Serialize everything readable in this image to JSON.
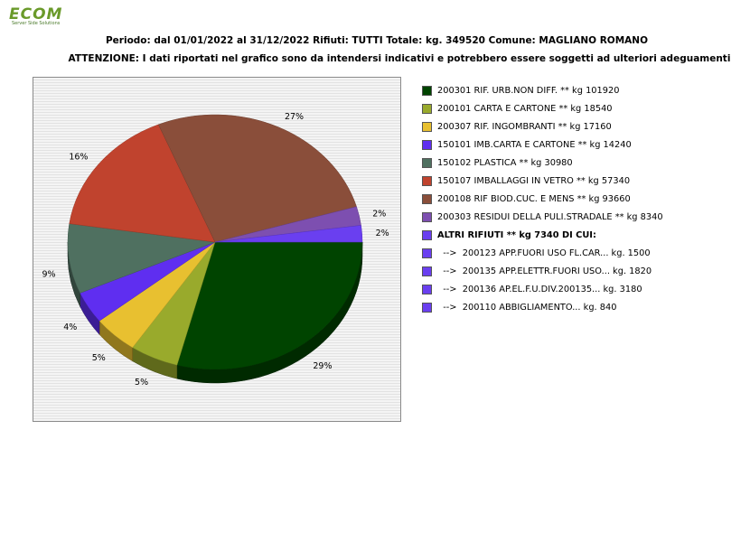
{
  "logo": {
    "text": "ECOM",
    "tagline": "Server Side Solutions"
  },
  "header": {
    "line1": "Periodo: dal 01/01/2022 al 31/12/2022 Rifiuti: TUTTI   Totale: kg. 349520    Comune: MAGLIANO ROMANO",
    "line2": "ATTENZIONE: I dati riportati nel grafico sono da intendersi indicativi e potrebbero essere soggetti ad ulteriori adeguamenti"
  },
  "chart_data": {
    "type": "pie",
    "title": "",
    "slices": [
      {
        "label": "200301 RIF. URB.NON DIFF. ** kg 101920",
        "value": 101920,
        "pct_label": "29%",
        "color": "#004400"
      },
      {
        "label": "200101 CARTA E CARTONE ** kg 18540",
        "value": 18540,
        "pct_label": "5%",
        "color": "#99aa2c"
      },
      {
        "label": "200307 RIF. INGOMBRANTI ** kg 17160",
        "value": 17160,
        "pct_label": "5%",
        "color": "#e8c030"
      },
      {
        "label": "150101 IMB.CARTA E CARTONE ** kg 14240",
        "value": 14240,
        "pct_label": "4%",
        "color": "#5f2ef0"
      },
      {
        "label": "150102 PLASTICA ** kg 30980",
        "value": 30980,
        "pct_label": "9%",
        "color": "#4f7060"
      },
      {
        "label": "150107 IMBALLAGGI IN VETRO ** kg 57340",
        "value": 57340,
        "pct_label": "16%",
        "color": "#c0432e"
      },
      {
        "label": "200108 RIF BIOD.CUC. E MENS ** kg 93660",
        "value": 93660,
        "pct_label": "27%",
        "color": "#8a4e3a"
      },
      {
        "label": "200303 RESIDUI DELLA PULI.STRADALE ** kg 8340",
        "value": 8340,
        "pct_label": "2%",
        "color": "#7d4fb0"
      },
      {
        "label": "ALTRI RIFIUTI ** kg 7340 DI CUI:",
        "value": 7340,
        "pct_label": "2%",
        "color": "#6a3ff0"
      }
    ],
    "sub_items": [
      {
        "label": "  -->  200123 APP.FUORI USO FL.CAR... kg. 1500",
        "value": 1500,
        "color": "#6a3ff0"
      },
      {
        "label": "  -->  200135 APP.ELETTR.FUORI USO... kg. 1820",
        "value": 1820,
        "color": "#6a3ff0"
      },
      {
        "label": "  -->  200136 AP.EL.F.U.DIV.200135... kg. 3180",
        "value": 3180,
        "color": "#6a3ff0"
      },
      {
        "label": "  -->  200110 ABBIGLIAMENTO... kg. 840",
        "value": 840,
        "color": "#6a3ff0"
      }
    ]
  }
}
